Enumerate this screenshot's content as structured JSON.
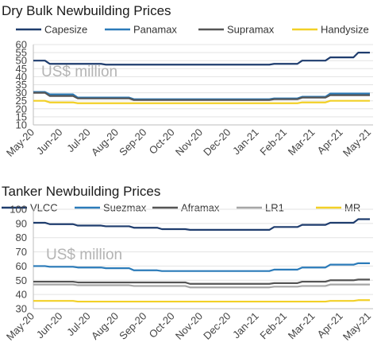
{
  "chart_data": [
    {
      "type": "line",
      "title": "Dry Bulk Newbuilding Prices",
      "annotation": "US$ million",
      "ylim": [
        10,
        60
      ],
      "yticks": [
        "10",
        "15",
        "20",
        "25",
        "30",
        "35",
        "40",
        "45",
        "50",
        "55",
        "60"
      ],
      "categories": [
        "May-20",
        "Jun-20",
        "Jul-20",
        "Aug-20",
        "Sep-20",
        "Oct-20",
        "Nov-20",
        "Dec-20",
        "Jan-21",
        "Feb-21",
        "Mar-21",
        "Apr-21",
        "May-21"
      ],
      "grid": true,
      "legend": "top",
      "series": [
        {
          "name": "Capesize",
          "color": "#1f3d6e",
          "values": [
            50,
            48,
            48,
            47.5,
            47.5,
            47.5,
            47.5,
            47.5,
            47.5,
            48,
            50,
            52,
            55
          ]
        },
        {
          "name": "Panamax",
          "color": "#2b7bb9",
          "values": [
            30.5,
            29,
            27,
            27,
            26,
            26,
            26,
            26,
            26,
            26.5,
            27.5,
            29.5,
            29.5
          ]
        },
        {
          "name": "Supramax",
          "color": "#555555",
          "values": [
            30,
            28,
            26.5,
            26.5,
            25.5,
            25.5,
            25.5,
            25.5,
            25.5,
            26,
            27,
            28.5,
            28.5
          ]
        },
        {
          "name": "Handysize",
          "color": "#f2d027",
          "values": [
            25,
            24,
            23.5,
            23.5,
            23.5,
            23.5,
            23.5,
            23.5,
            23.5,
            23.5,
            24,
            25,
            25
          ]
        }
      ]
    },
    {
      "type": "line",
      "title": "Tanker Newbuilding Prices",
      "annotation": "US$ million",
      "ylim": [
        30,
        100
      ],
      "yticks": [
        "30",
        "40",
        "50",
        "60",
        "70",
        "80",
        "90",
        "100"
      ],
      "categories": [
        "May-20",
        "Jun-20",
        "Jul-20",
        "Aug-20",
        "Sep-20",
        "Oct-20",
        "Nov-20",
        "Dec-20",
        "Jan-21",
        "Feb-21",
        "Mar-21",
        "Apr-21",
        "May-21"
      ],
      "grid": true,
      "legend": "top",
      "series": [
        {
          "name": "VLCC",
          "color": "#1f3d6e",
          "values": [
            90.5,
            89.5,
            88.5,
            88,
            87,
            86,
            85.5,
            85.5,
            85.5,
            87.5,
            89,
            90.5,
            93
          ]
        },
        {
          "name": "Suezmax",
          "color": "#2b7bb9",
          "values": [
            60,
            59.5,
            59,
            58.5,
            57,
            56.5,
            56.5,
            56.5,
            56.5,
            57.5,
            59,
            61,
            62
          ]
        },
        {
          "name": "Aframax",
          "color": "#555555",
          "values": [
            49,
            49,
            48.5,
            48.5,
            48.5,
            48.5,
            47.5,
            47.5,
            47.5,
            48,
            49,
            50,
            50.5
          ]
        },
        {
          "name": "LR1",
          "color": "#a6a6a6",
          "values": [
            47,
            47,
            46.5,
            46.5,
            46,
            46,
            45,
            45,
            45,
            45.5,
            46,
            47,
            47
          ]
        },
        {
          "name": "MR",
          "color": "#f2d027",
          "values": [
            35.5,
            35.5,
            35,
            35,
            35,
            35,
            35,
            35,
            35,
            35,
            35,
            35.5,
            36
          ]
        }
      ]
    }
  ]
}
